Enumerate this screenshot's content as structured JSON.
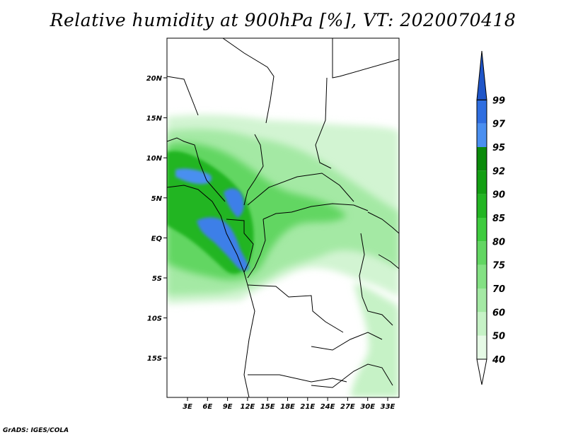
{
  "title": "Relative humidity at 900hPa [%], VT: 2020070418",
  "credit": "GrADS: IGES/COLA",
  "map": {
    "lat_labels": [
      "20N",
      "15N",
      "10N",
      "5N",
      "EQ",
      "5S",
      "10S",
      "15S"
    ],
    "lon_labels": [
      "3E",
      "6E",
      "9E",
      "12E",
      "15E",
      "18E",
      "21E",
      "24E",
      "27E",
      "30E",
      "33E"
    ]
  },
  "colorbar": {
    "levels": [
      "40",
      "50",
      "60",
      "70",
      "75",
      "80",
      "85",
      "90",
      "92",
      "95",
      "97",
      "99"
    ],
    "colors": [
      "#ffffff",
      "#e6fae6",
      "#c6f2c6",
      "#a4e9a4",
      "#84e184",
      "#62d662",
      "#3ecb3e",
      "#23b523",
      "#139f13",
      "#0a8a0a",
      "#4a8ff0",
      "#2f6ee0",
      "#1f55c8"
    ]
  }
}
